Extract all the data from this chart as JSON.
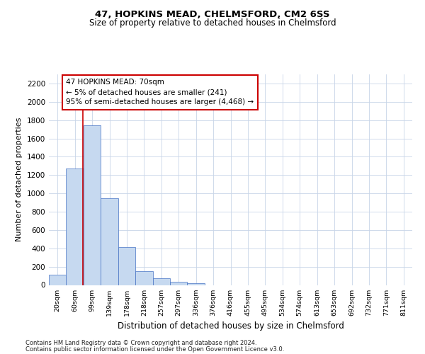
{
  "title1": "47, HOPKINS MEAD, CHELMSFORD, CM2 6SS",
  "title2": "Size of property relative to detached houses in Chelmsford",
  "xlabel": "Distribution of detached houses by size in Chelmsford",
  "ylabel": "Number of detached properties",
  "categories": [
    "20sqm",
    "60sqm",
    "99sqm",
    "139sqm",
    "178sqm",
    "218sqm",
    "257sqm",
    "297sqm",
    "336sqm",
    "376sqm",
    "416sqm",
    "455sqm",
    "495sqm",
    "534sqm",
    "574sqm",
    "613sqm",
    "653sqm",
    "692sqm",
    "732sqm",
    "771sqm",
    "811sqm"
  ],
  "values": [
    115,
    1270,
    1740,
    950,
    415,
    150,
    75,
    35,
    20,
    0,
    0,
    0,
    0,
    0,
    0,
    0,
    0,
    0,
    0,
    0,
    0
  ],
  "bar_color": "#c6d9f0",
  "bar_edge_color": "#4472c4",
  "grid_color": "#c8d4e8",
  "annotation_text": "47 HOPKINS MEAD: 70sqm\n← 5% of detached houses are smaller (241)\n95% of semi-detached houses are larger (4,468) →",
  "annotation_box_color": "#ffffff",
  "annotation_box_edge": "#cc0000",
  "redline_x": 1.45,
  "ylim": [
    0,
    2300
  ],
  "yticks": [
    0,
    200,
    400,
    600,
    800,
    1000,
    1200,
    1400,
    1600,
    1800,
    2000,
    2200
  ],
  "footer1": "Contains HM Land Registry data © Crown copyright and database right 2024.",
  "footer2": "Contains public sector information licensed under the Open Government Licence v3.0.",
  "bg_color": "#ffffff"
}
